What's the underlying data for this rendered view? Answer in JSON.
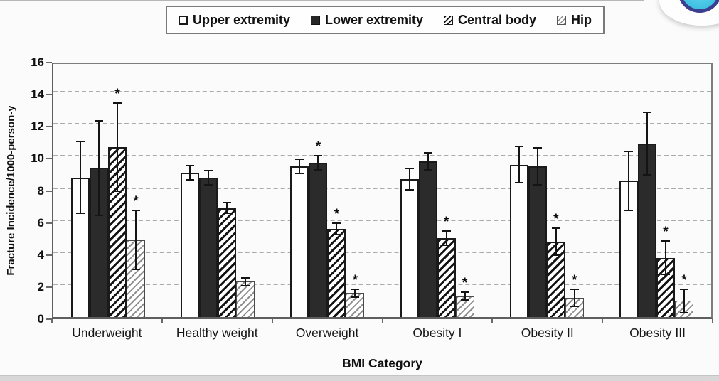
{
  "chart_data": {
    "type": "bar",
    "title": "",
    "xlabel": "BMI Category",
    "ylabel": "Fracture Incidence/1000-person-y",
    "ylim": [
      0,
      16
    ],
    "ytick_step": 2,
    "grid": "dashed-horizontal",
    "legend_position": "top",
    "significance_marker": "*",
    "categories": [
      "Underweight",
      "Healthy weight",
      "Overweight",
      "Obesity I",
      "Obesity II",
      "Obesity III"
    ],
    "series": [
      {
        "name": "Upper extremity",
        "marker_style": "open",
        "values": [
          8.7,
          9.0,
          9.4,
          8.6,
          9.5,
          8.5
        ],
        "errors": [
          2.2,
          0.4,
          0.4,
          0.6,
          1.1,
          1.8
        ],
        "significant": [
          false,
          false,
          false,
          false,
          false,
          false
        ]
      },
      {
        "name": "Lower extremity",
        "marker_style": "solid",
        "values": [
          9.3,
          8.7,
          9.6,
          9.7,
          9.4,
          10.8
        ],
        "errors": [
          2.9,
          0.4,
          0.4,
          0.5,
          1.1,
          1.9
        ],
        "significant": [
          false,
          false,
          true,
          false,
          false,
          false
        ]
      },
      {
        "name": "Central body",
        "marker_style": "hatch-dark",
        "values": [
          10.6,
          6.8,
          5.5,
          4.9,
          4.7,
          3.7
        ],
        "errors": [
          2.7,
          0.3,
          0.3,
          0.4,
          0.8,
          1.0
        ],
        "significant": [
          true,
          false,
          true,
          true,
          true,
          true
        ]
      },
      {
        "name": "Hip",
        "marker_style": "hatch-light",
        "values": [
          4.8,
          2.2,
          1.5,
          1.3,
          1.2,
          1.0
        ],
        "errors": [
          1.8,
          0.2,
          0.2,
          0.2,
          0.5,
          0.7
        ],
        "significant": [
          true,
          false,
          true,
          true,
          true,
          true
        ]
      }
    ]
  },
  "decorations": {
    "corner_button": {
      "fill": "#49c7e7",
      "ring": "#3c3f90"
    }
  }
}
